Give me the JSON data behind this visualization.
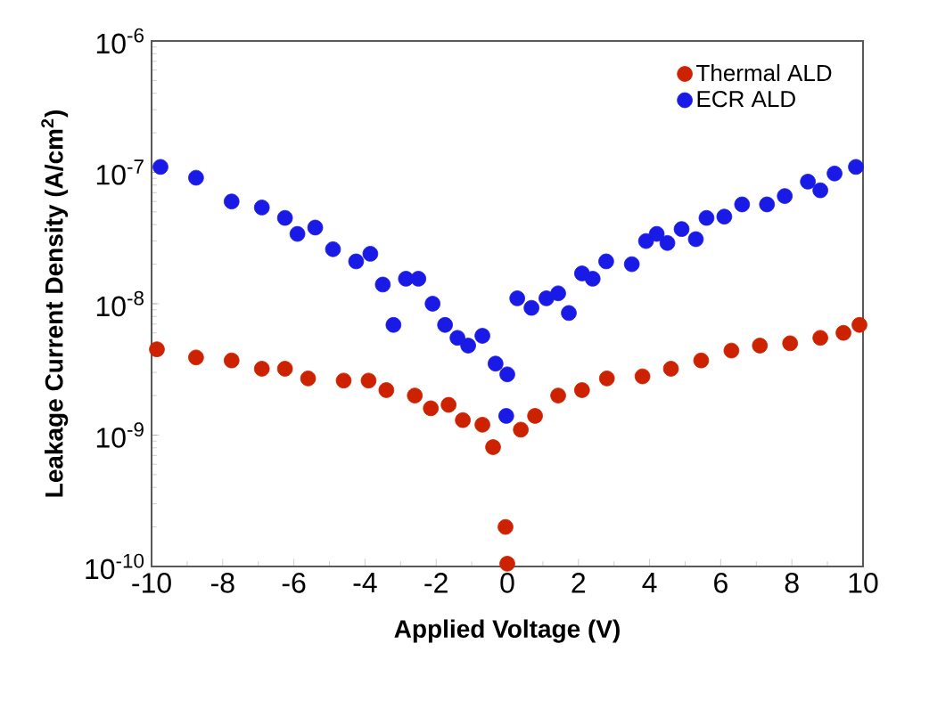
{
  "chart_data": {
    "type": "scatter",
    "xlabel": "Applied Voltage (V)",
    "ylabel": "Leakage Current Density (A/cm$^{2}$)",
    "log": "y",
    "marker": "circle",
    "legend": "top right",
    "xlim": [
      -10,
      10
    ],
    "xticks": [
      -10,
      -8,
      -6,
      -4,
      -2,
      0,
      2,
      4,
      6,
      8,
      10
    ],
    "ylim": [
      1e-10,
      1e-06
    ],
    "yticks": [
      {
        "value": 1e-10,
        "label": "10$^{-10}$"
      },
      {
        "value": 1e-09,
        "label": "10$^{-9}$"
      },
      {
        "value": 1e-08,
        "label": "10$^{-8}$"
      },
      {
        "value": 1e-07,
        "label": "10$^{-7}$"
      },
      {
        "value": 1e-06,
        "label": "10$^{-6}$"
      }
    ],
    "series": [
      {
        "name": "Thermal ALD",
        "color": "#cc2200",
        "x": [
          -9.85,
          -8.75,
          -7.75,
          -6.9,
          -6.25,
          -5.6,
          -4.6,
          -3.9,
          -3.4,
          -2.6,
          -2.15,
          -1.65,
          -1.25,
          -0.7,
          -0.4,
          -0.05,
          0.0,
          0.38,
          0.78,
          1.43,
          2.1,
          2.8,
          3.8,
          4.6,
          5.45,
          6.3,
          7.1,
          7.95,
          8.8,
          9.45,
          9.9
        ],
        "values": [
          4.5e-09,
          3.9e-09,
          3.7e-09,
          3.2e-09,
          3.2e-09,
          2.7e-09,
          2.6e-09,
          2.6e-09,
          2.2e-09,
          2e-09,
          1.6e-09,
          1.7e-09,
          1.3e-09,
          1.2e-09,
          8.1e-10,
          2e-10,
          1.05e-10,
          1.1e-09,
          1.4e-09,
          2e-09,
          2.2e-09,
          2.7e-09,
          2.8e-09,
          3.2e-09,
          3.7e-09,
          4.4e-09,
          4.8e-09,
          5e-09,
          5.5e-09,
          6e-09,
          6.9e-09
        ]
      },
      {
        "name": "ECR ALD",
        "color": "#1a1ae6",
        "x": [
          -9.75,
          -8.75,
          -7.75,
          -6.9,
          -6.25,
          -5.9,
          -5.4,
          -4.9,
          -4.25,
          -3.85,
          -3.5,
          -3.2,
          -2.85,
          -2.5,
          -2.1,
          -1.75,
          -1.4,
          -1.1,
          -0.7,
          -0.33,
          0.0,
          -0.03,
          0.28,
          0.68,
          1.1,
          1.43,
          1.73,
          2.1,
          2.4,
          2.78,
          3.5,
          3.9,
          4.2,
          4.5,
          4.9,
          5.3,
          5.6,
          6.1,
          6.6,
          7.3,
          7.8,
          8.45,
          8.8,
          9.2,
          9.8
        ],
        "values": [
          1.1e-07,
          9.1e-08,
          6e-08,
          5.4e-08,
          4.5e-08,
          3.4e-08,
          3.8e-08,
          2.6e-08,
          2.1e-08,
          2.4e-08,
          1.4e-08,
          6.9e-09,
          1.55e-08,
          1.55e-08,
          1e-08,
          6.9e-09,
          5.5e-09,
          4.8e-09,
          5.7e-09,
          3.5e-09,
          2.9e-09,
          1.4e-09,
          1.1e-08,
          9.3e-09,
          1.1e-08,
          1.2e-08,
          8.5e-09,
          1.7e-08,
          1.55e-08,
          2.1e-08,
          2e-08,
          3e-08,
          3.4e-08,
          2.9e-08,
          3.7e-08,
          3.1e-08,
          4.5e-08,
          4.6e-08,
          5.7e-08,
          5.7e-08,
          6.6e-08,
          8.5e-08,
          7.3e-08,
          9.8e-08,
          1.1e-07
        ]
      }
    ]
  }
}
